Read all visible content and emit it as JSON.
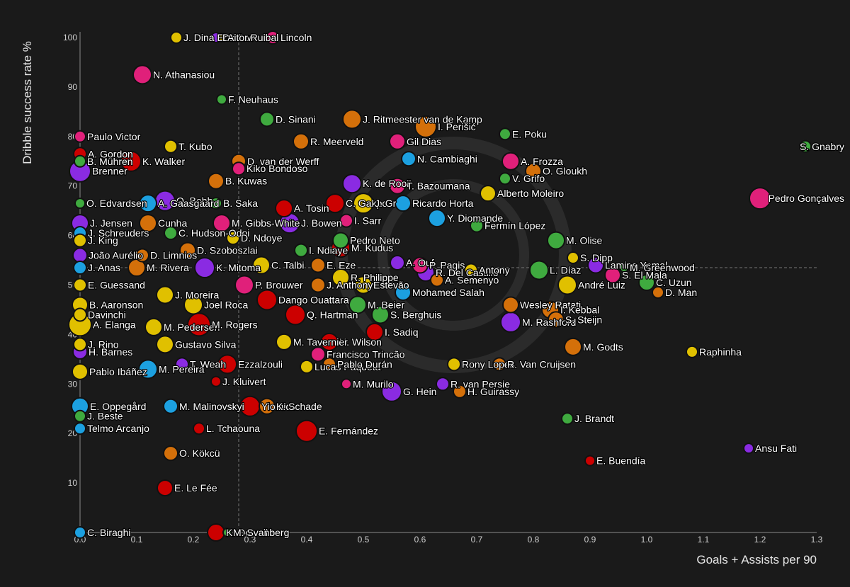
{
  "chart_data": {
    "type": "scatter",
    "title": "",
    "xlabel": "Goals + Assists per 90",
    "ylabel": "Dribble success rate %",
    "xlim": [
      0.0,
      1.3
    ],
    "ylim": [
      0,
      100
    ],
    "x_ticks": [
      "0.0",
      "0.1",
      "0.2",
      "0.3",
      "0.4",
      "0.5",
      "0.6",
      "0.7",
      "0.8",
      "0.9",
      "1.0",
      "1.1",
      "1.2",
      "1.3"
    ],
    "y_ticks": [
      "10",
      "20",
      "30",
      "40",
      "50",
      "60",
      "70",
      "80",
      "90",
      "100"
    ],
    "reference_lines": {
      "x": 0.28,
      "y": 53.5
    },
    "grid": false,
    "colors": {
      "background": "#1a1a1a",
      "red": "#cc0000",
      "yellow": "#e0c000",
      "green": "#3faa3f",
      "purple": "#8a2be2",
      "pink": "#e0207a",
      "orange": "#d4700a",
      "blue": "#1ca0e0"
    },
    "points": [
      {
        "label": "J. Dina Ebimbe",
        "x": 0.17,
        "y": 100,
        "c": "yellow",
        "s": 8
      },
      {
        "label": "D. Sow",
        "x": 0.24,
        "y": 100,
        "c": "purple",
        "s": 7
      },
      {
        "label": "Aitor Ruibal",
        "x": 0.25,
        "y": 100,
        "c": "yellow",
        "s": 6
      },
      {
        "label": "Lincoln",
        "x": 0.34,
        "y": 100,
        "c": "pink",
        "s": 9
      },
      {
        "label": "N. Athanasiou",
        "x": 0.11,
        "y": 92.5,
        "c": "pink",
        "s": 13
      },
      {
        "label": "F. Neuhaus",
        "x": 0.25,
        "y": 87.5,
        "c": "green",
        "s": 7
      },
      {
        "label": "D. Sinani",
        "x": 0.33,
        "y": 83.5,
        "c": "green",
        "s": 10
      },
      {
        "label": "J. Ritmeester van de Kamp",
        "x": 0.48,
        "y": 83.5,
        "c": "orange",
        "s": 13
      },
      {
        "label": "I. Perišić",
        "x": 0.61,
        "y": 82,
        "c": "orange",
        "s": 15
      },
      {
        "label": "E. Poku",
        "x": 0.75,
        "y": 80.5,
        "c": "green",
        "s": 8
      },
      {
        "label": "S. Gnabry",
        "x": 1.28,
        "y": 78,
        "c": "green",
        "s": 8
      },
      {
        "label": "Paulo Victor",
        "x": 0.0,
        "y": 80,
        "c": "pink",
        "s": 8
      },
      {
        "label": "A. Gordon",
        "x": 0.0,
        "y": 76.5,
        "c": "red",
        "s": 9
      },
      {
        "label": "T. Kubo",
        "x": 0.16,
        "y": 78,
        "c": "yellow",
        "s": 9
      },
      {
        "label": "R. Meerveld",
        "x": 0.39,
        "y": 79,
        "c": "orange",
        "s": 11
      },
      {
        "label": "Gil Dias",
        "x": 0.56,
        "y": 79,
        "c": "pink",
        "s": 11
      },
      {
        "label": "B. Mühren",
        "x": 0.0,
        "y": 75,
        "c": "green",
        "s": 8
      },
      {
        "label": "K. Walker",
        "x": 0.09,
        "y": 75,
        "c": "red",
        "s": 14
      },
      {
        "label": "D. van der Werff",
        "x": 0.28,
        "y": 75,
        "c": "orange",
        "s": 10
      },
      {
        "label": "N. Cambiaghi",
        "x": 0.58,
        "y": 75.5,
        "c": "blue",
        "s": 10
      },
      {
        "label": "A. Frozza",
        "x": 0.76,
        "y": 75,
        "c": "pink",
        "s": 12
      },
      {
        "label": "Brenner",
        "x": 0.0,
        "y": 73,
        "c": "purple",
        "s": 15
      },
      {
        "label": "Kiko Bondoso",
        "x": 0.28,
        "y": 73.5,
        "c": "pink",
        "s": 9
      },
      {
        "label": "O. Gloukh",
        "x": 0.8,
        "y": 73,
        "c": "orange",
        "s": 11
      },
      {
        "label": "B. Kuwas",
        "x": 0.24,
        "y": 71,
        "c": "orange",
        "s": 11
      },
      {
        "label": "K. de Rooij",
        "x": 0.48,
        "y": 70.5,
        "c": "purple",
        "s": 13
      },
      {
        "label": "T. Bazoumana",
        "x": 0.56,
        "y": 70,
        "c": "pink",
        "s": 11
      },
      {
        "label": "V. Grifo",
        "x": 0.75,
        "y": 71.5,
        "c": "green",
        "s": 8
      },
      {
        "label": "O. Bobb",
        "x": 0.15,
        "y": 67,
        "c": "purple",
        "s": 14
      },
      {
        "label": "Alberto Moleiro",
        "x": 0.72,
        "y": 68.5,
        "c": "yellow",
        "s": 11
      },
      {
        "label": "Pedro Gonçalves",
        "x": 1.2,
        "y": 67.5,
        "c": "pink",
        "s": 15
      },
      {
        "label": "O. Edvardsen",
        "x": 0.0,
        "y": 66.5,
        "c": "green",
        "s": 7
      },
      {
        "label": "A. Gaasgaard",
        "x": 0.12,
        "y": 66.5,
        "c": "blue",
        "s": 12
      },
      {
        "label": "B. Saka",
        "x": 0.24,
        "y": 66.5,
        "c": "green",
        "s": 8
      },
      {
        "label": "A. Tosin",
        "x": 0.36,
        "y": 65.5,
        "c": "red",
        "s": 12
      },
      {
        "label": "C. Gakpo",
        "x": 0.45,
        "y": 66.5,
        "c": "red",
        "s": 13
      },
      {
        "label": "J. Gr",
        "x": 0.5,
        "y": 66.5,
        "c": "yellow",
        "s": 14
      },
      {
        "label": "Ricardo Horta",
        "x": 0.57,
        "y": 66.5,
        "c": "blue",
        "s": 11
      },
      {
        "label": "J. Jensen",
        "x": 0.0,
        "y": 62.5,
        "c": "purple",
        "s": 12
      },
      {
        "label": "Cunha",
        "x": 0.12,
        "y": 62.5,
        "c": "orange",
        "s": 12
      },
      {
        "label": "J. Schreuders",
        "x": 0.0,
        "y": 60.5,
        "c": "blue",
        "s": 9
      },
      {
        "label": "C. Hudson-Odoi",
        "x": 0.16,
        "y": 60.5,
        "c": "green",
        "s": 9
      },
      {
        "label": "M. Gibbs-White",
        "x": 0.25,
        "y": 62.5,
        "c": "pink",
        "s": 12
      },
      {
        "label": "J. Bowen",
        "x": 0.37,
        "y": 62.5,
        "c": "purple",
        "s": 14
      },
      {
        "label": "I. Sarr",
        "x": 0.47,
        "y": 63,
        "c": "pink",
        "s": 9
      },
      {
        "label": "Y. Diomande",
        "x": 0.63,
        "y": 63.5,
        "c": "blue",
        "s": 12
      },
      {
        "label": "Fermín López",
        "x": 0.7,
        "y": 62,
        "c": "green",
        "s": 9
      },
      {
        "label": "J. King",
        "x": 0.0,
        "y": 59,
        "c": "yellow",
        "s": 9
      },
      {
        "label": "D. Ndoye",
        "x": 0.27,
        "y": 59.5,
        "c": "yellow",
        "s": 9
      },
      {
        "label": "Pedro Neto",
        "x": 0.46,
        "y": 59,
        "c": "green",
        "s": 11
      },
      {
        "label": "M. Olise",
        "x": 0.84,
        "y": 59,
        "c": "green",
        "s": 12
      },
      {
        "label": "João Aurélio",
        "x": 0.0,
        "y": 56,
        "c": "purple",
        "s": 10
      },
      {
        "label": "D. Limnios",
        "x": 0.11,
        "y": 56,
        "c": "orange",
        "s": 9
      },
      {
        "label": "D. Szoboszlai",
        "x": 0.19,
        "y": 57,
        "c": "orange",
        "s": 11
      },
      {
        "label": "I. Ndiaye",
        "x": 0.39,
        "y": 57,
        "c": "green",
        "s": 9
      },
      {
        "label": "M. Kudus",
        "x": 0.46,
        "y": 57.5,
        "c": "red",
        "s": 13
      },
      {
        "label": "S. Dipp",
        "x": 0.87,
        "y": 55.5,
        "c": "yellow",
        "s": 8
      },
      {
        "label": "Lamine Yamal",
        "x": 0.91,
        "y": 54,
        "c": "purple",
        "s": 11
      },
      {
        "label": "J. Anas",
        "x": 0.0,
        "y": 53.5,
        "c": "blue",
        "s": 9
      },
      {
        "label": "M. Rivera",
        "x": 0.1,
        "y": 53.5,
        "c": "orange",
        "s": 12
      },
      {
        "label": "K. Mitoma",
        "x": 0.22,
        "y": 53.5,
        "c": "purple",
        "s": 14
      },
      {
        "label": "C. Talbi",
        "x": 0.32,
        "y": 54,
        "c": "yellow",
        "s": 12
      },
      {
        "label": "E. Eze",
        "x": 0.42,
        "y": 54,
        "c": "orange",
        "s": 10
      },
      {
        "label": "A. Ouf",
        "x": 0.56,
        "y": 54.5,
        "c": "purple",
        "s": 10
      },
      {
        "label": "P. Pagis",
        "x": 0.6,
        "y": 54,
        "c": "pink",
        "s": 11
      },
      {
        "label": "R. Del Castillo",
        "x": 0.61,
        "y": 52.5,
        "c": "purple",
        "s": 12
      },
      {
        "label": "Antony",
        "x": 0.69,
        "y": 53,
        "c": "yellow",
        "s": 9
      },
      {
        "label": "L. Díaz",
        "x": 0.81,
        "y": 53,
        "c": "green",
        "s": 13
      },
      {
        "label": "M. Greenwood",
        "x": 0.96,
        "y": 53.5,
        "c": "green",
        "s": 6
      },
      {
        "label": "S. El Mala",
        "x": 0.94,
        "y": 52,
        "c": "pink",
        "s": 11
      },
      {
        "label": "R. Philippe",
        "x": 0.46,
        "y": 51.5,
        "c": "yellow",
        "s": 12
      },
      {
        "label": "A. Semenyo",
        "x": 0.63,
        "y": 51,
        "c": "orange",
        "s": 9
      },
      {
        "label": "E. Guessand",
        "x": 0.0,
        "y": 50,
        "c": "yellow",
        "s": 9
      },
      {
        "label": "P. Brouwer",
        "x": 0.29,
        "y": 50,
        "c": "pink",
        "s": 13
      },
      {
        "label": "J. Anthony",
        "x": 0.42,
        "y": 50,
        "c": "orange",
        "s": 10
      },
      {
        "label": "Estevão",
        "x": 0.5,
        "y": 50,
        "c": "yellow",
        "s": 12
      },
      {
        "label": "André Luiz",
        "x": 0.86,
        "y": 50,
        "c": "yellow",
        "s": 13
      },
      {
        "label": "C. Uzun",
        "x": 1.0,
        "y": 50.5,
        "c": "green",
        "s": 11
      },
      {
        "label": "D. Man",
        "x": 1.02,
        "y": 48.5,
        "c": "orange",
        "s": 8
      },
      {
        "label": "J. Moreira",
        "x": 0.15,
        "y": 48,
        "c": "yellow",
        "s": 12
      },
      {
        "label": "Mohamed Salah",
        "x": 0.57,
        "y": 48.5,
        "c": "blue",
        "s": 11
      },
      {
        "label": "M. Beier",
        "x": 0.49,
        "y": 46,
        "c": "green",
        "s": 12
      },
      {
        "label": "B. Aaronson",
        "x": 0.0,
        "y": 46,
        "c": "yellow",
        "s": 11
      },
      {
        "label": "Joel Roca",
        "x": 0.2,
        "y": 46,
        "c": "yellow",
        "s": 13
      },
      {
        "label": "Dango Ouattara",
        "x": 0.33,
        "y": 47,
        "c": "red",
        "s": 14
      },
      {
        "label": "Wesley Ratati",
        "x": 0.76,
        "y": 46,
        "c": "orange",
        "s": 11
      },
      {
        "label": "I. Kebbal",
        "x": 0.83,
        "y": 45,
        "c": "orange",
        "s": 12
      },
      {
        "label": "Davinchi",
        "x": 0.0,
        "y": 44,
        "c": "yellow",
        "s": 9
      },
      {
        "label": "Q. Hartman",
        "x": 0.38,
        "y": 44,
        "c": "red",
        "s": 14
      },
      {
        "label": "S. Berghuis",
        "x": 0.53,
        "y": 44,
        "c": "green",
        "s": 12
      },
      {
        "label": "M. Rashford",
        "x": 0.76,
        "y": 42.5,
        "c": "purple",
        "s": 14
      },
      {
        "label": "S. Steijn",
        "x": 0.84,
        "y": 43,
        "c": "orange",
        "s": 11
      },
      {
        "label": "A. Elanga",
        "x": 0.0,
        "y": 42,
        "c": "yellow",
        "s": 16
      },
      {
        "label": "M. Pedersen",
        "x": 0.13,
        "y": 41.5,
        "c": "yellow",
        "s": 12
      },
      {
        "label": "M. Rogers",
        "x": 0.21,
        "y": 42,
        "c": "red",
        "s": 16
      },
      {
        "label": "I. Sadiq",
        "x": 0.52,
        "y": 40.5,
        "c": "red",
        "s": 12
      },
      {
        "label": "H. Wilson",
        "x": 0.44,
        "y": 38.5,
        "c": "red",
        "s": 12
      },
      {
        "label": "J. Rino",
        "x": 0.0,
        "y": 38,
        "c": "yellow",
        "s": 9
      },
      {
        "label": "Gustavo Silva",
        "x": 0.15,
        "y": 38,
        "c": "yellow",
        "s": 12
      },
      {
        "label": "M. Tavernier",
        "x": 0.36,
        "y": 38.5,
        "c": "yellow",
        "s": 11
      },
      {
        "label": "H. Barnes",
        "x": 0.0,
        "y": 36.5,
        "c": "purple",
        "s": 10
      },
      {
        "label": "Francisco Trincão",
        "x": 0.42,
        "y": 36,
        "c": "pink",
        "s": 10
      },
      {
        "label": "Rony Lopes",
        "x": 0.66,
        "y": 34,
        "c": "yellow",
        "s": 9
      },
      {
        "label": "M. Godts",
        "x": 0.87,
        "y": 37.5,
        "c": "orange",
        "s": 12
      },
      {
        "label": "Raphinha",
        "x": 1.08,
        "y": 36.5,
        "c": "yellow",
        "s": 8
      },
      {
        "label": "T. Weah",
        "x": 0.18,
        "y": 34,
        "c": "purple",
        "s": 9
      },
      {
        "label": "Ezzalzouli",
        "x": 0.26,
        "y": 34,
        "c": "red",
        "s": 13
      },
      {
        "label": "Lucas Paquetá",
        "x": 0.4,
        "y": 33.5,
        "c": "yellow",
        "s": 9
      },
      {
        "label": "Pablo Durán",
        "x": 0.44,
        "y": 34,
        "c": "orange",
        "s": 9
      },
      {
        "label": "R. Van Cruijsen",
        "x": 0.74,
        "y": 34,
        "c": "orange",
        "s": 9
      },
      {
        "label": "Pablo Ibáñez",
        "x": 0.0,
        "y": 32.5,
        "c": "yellow",
        "s": 11
      },
      {
        "label": "M. Pereira",
        "x": 0.12,
        "y": 33,
        "c": "blue",
        "s": 13
      },
      {
        "label": "J. Kluivert",
        "x": 0.24,
        "y": 30.5,
        "c": "red",
        "s": 7
      },
      {
        "label": "M. Murilo",
        "x": 0.47,
        "y": 30,
        "c": "pink",
        "s": 7
      },
      {
        "label": "R. van Persie",
        "x": 0.64,
        "y": 30,
        "c": "purple",
        "s": 9
      },
      {
        "label": "H. Guirassy",
        "x": 0.67,
        "y": 28.5,
        "c": "orange",
        "s": 9
      },
      {
        "label": "G. Hein",
        "x": 0.55,
        "y": 28.5,
        "c": "purple",
        "s": 14
      },
      {
        "label": "E. Oppegård",
        "x": 0.0,
        "y": 25.5,
        "c": "blue",
        "s": 12
      },
      {
        "label": "M. Malinovskyi",
        "x": 0.16,
        "y": 25.5,
        "c": "blue",
        "s": 10
      },
      {
        "label": "Yiomide",
        "x": 0.3,
        "y": 25.5,
        "c": "red",
        "s": 14
      },
      {
        "label": "K. Schade",
        "x": 0.33,
        "y": 25.5,
        "c": "orange",
        "s": 11
      },
      {
        "label": "J. Beste",
        "x": 0.0,
        "y": 23.5,
        "c": "green",
        "s": 8
      },
      {
        "label": "J. Brandt",
        "x": 0.86,
        "y": 23,
        "c": "green",
        "s": 8
      },
      {
        "label": "Telmo Arcanjo",
        "x": 0.0,
        "y": 21,
        "c": "blue",
        "s": 8
      },
      {
        "label": "L. Tchaouna",
        "x": 0.21,
        "y": 21,
        "c": "red",
        "s": 8
      },
      {
        "label": "E. Fernández",
        "x": 0.4,
        "y": 20.5,
        "c": "red",
        "s": 15
      },
      {
        "label": "Ansu Fati",
        "x": 1.18,
        "y": 17,
        "c": "purple",
        "s": 7
      },
      {
        "label": "O. Kökcü",
        "x": 0.16,
        "y": 16,
        "c": "orange",
        "s": 10
      },
      {
        "label": "E. Buendía",
        "x": 0.9,
        "y": 14.5,
        "c": "red",
        "s": 7
      },
      {
        "label": "E. Le Fée",
        "x": 0.15,
        "y": 9,
        "c": "red",
        "s": 11
      },
      {
        "label": "C. Biraghi",
        "x": 0.0,
        "y": 0,
        "c": "blue",
        "s": 8
      },
      {
        "label": "K. Dowell",
        "x": 0.24,
        "y": 0,
        "c": "red",
        "s": 12
      },
      {
        "label": "M. Svanberg",
        "x": 0.26,
        "y": 0,
        "c": "green",
        "s": 6
      }
    ]
  }
}
